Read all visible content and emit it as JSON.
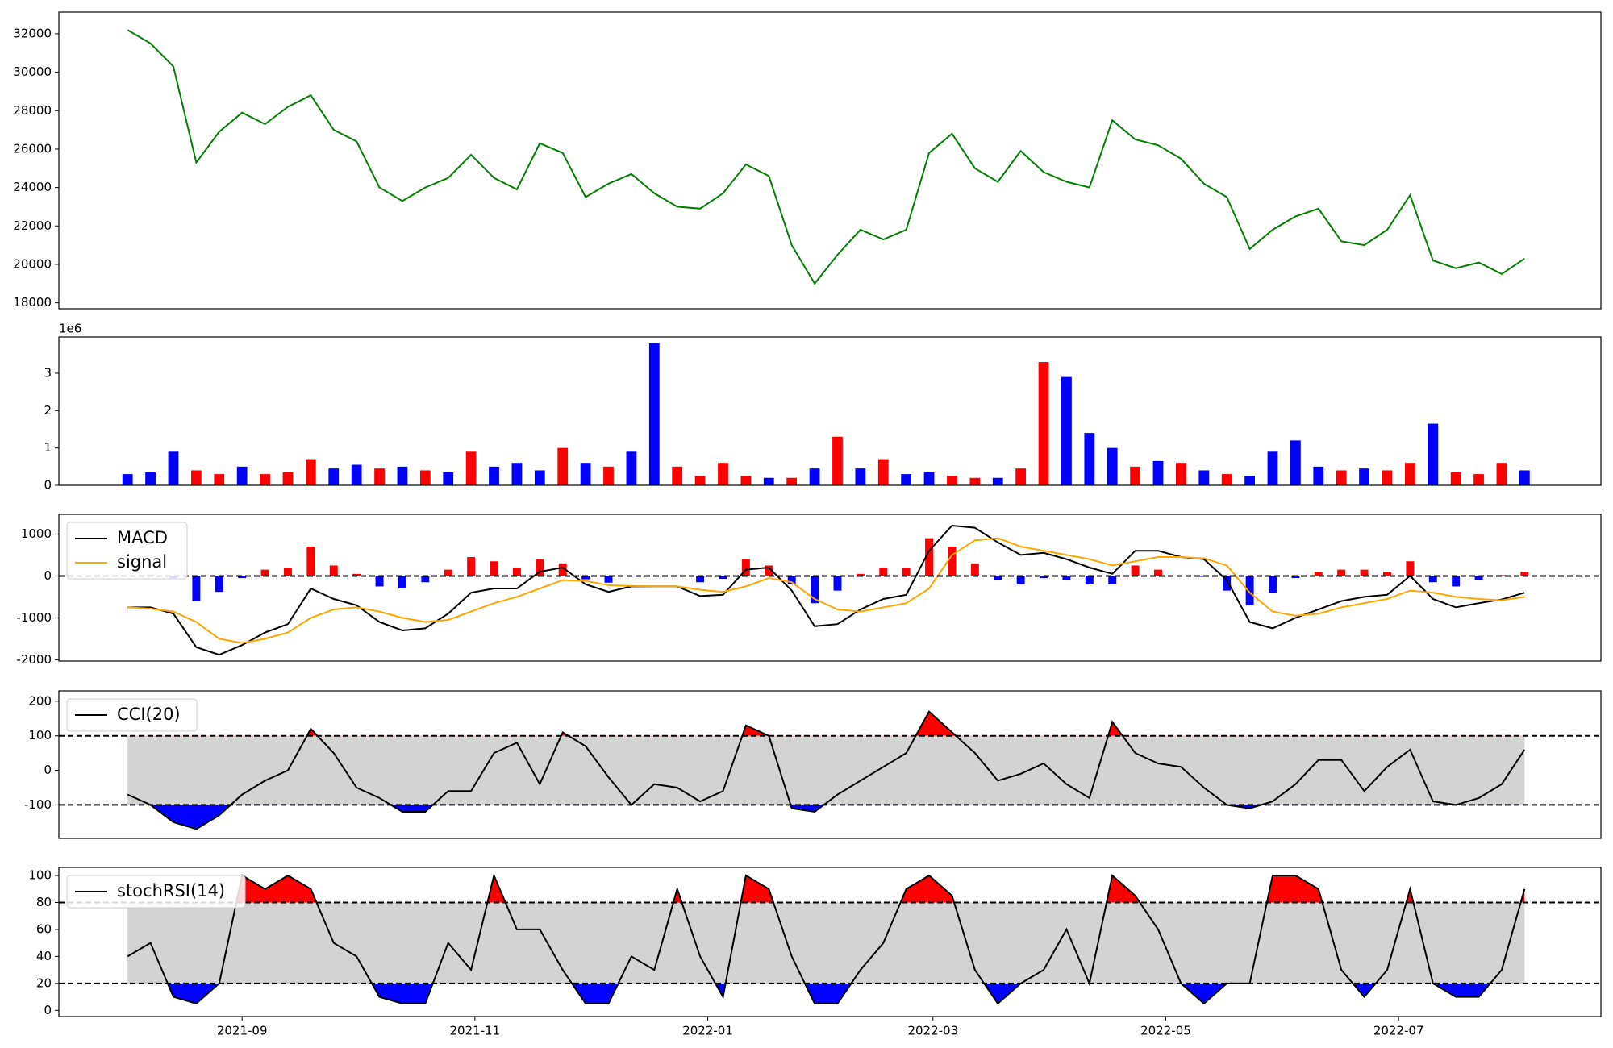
{
  "chart_data": [
    {
      "type": "line",
      "x": [
        18841,
        18847,
        18853,
        18859,
        18865,
        18871,
        18877,
        18883,
        18889,
        18895,
        18901,
        18907,
        18913,
        18919,
        18925,
        18931,
        18937,
        18943,
        18949,
        18955,
        18961,
        18967,
        18973,
        18979,
        18985,
        18991,
        18997,
        19003,
        19009,
        19015,
        19021,
        19027,
        19033,
        19039,
        19045,
        19051,
        19057,
        19063,
        19069,
        19075,
        19081,
        19087,
        19093,
        19099,
        19105,
        19111,
        19117,
        19123,
        19129,
        19135,
        19141,
        19147,
        19153,
        19159,
        19165,
        19171,
        19177,
        19183,
        19189,
        19195,
        19201,
        19207
      ],
      "series": [
        {
          "color": "#008000",
          "values": [
            32200,
            31500,
            30300,
            25300,
            26900,
            27900,
            27300,
            28200,
            28800,
            27000,
            26400,
            24000,
            23300,
            24000,
            24500,
            25700,
            24500,
            23900,
            26300,
            25800,
            23500,
            24200,
            24700,
            23700,
            23000,
            22900,
            23700,
            25200,
            24600,
            21000,
            19000,
            20500,
            21800,
            21300,
            21800,
            25800,
            26800,
            25000,
            24300,
            25900,
            24800,
            24300,
            24000,
            27500,
            26500,
            26200,
            25500,
            24200,
            23500,
            20800,
            21800,
            22500,
            22900,
            21200,
            21000,
            21800,
            23600,
            20200,
            19800,
            20100,
            19500,
            20300
          ]
        }
      ],
      "xlim": [
        18823,
        19227
      ],
      "ylim": [
        17690,
        33130
      ],
      "yticks": [
        18000,
        20000,
        22000,
        24000,
        26000,
        28000,
        30000,
        32000
      ]
    },
    {
      "type": "bar",
      "x": [
        18841,
        18847,
        18853,
        18859,
        18865,
        18871,
        18877,
        18883,
        18889,
        18895,
        18901,
        18907,
        18913,
        18919,
        18925,
        18931,
        18937,
        18943,
        18949,
        18955,
        18961,
        18967,
        18973,
        18979,
        18985,
        18991,
        18997,
        19003,
        19009,
        19015,
        19021,
        19027,
        19033,
        19039,
        19045,
        19051,
        19057,
        19063,
        19069,
        19075,
        19081,
        19087,
        19093,
        19099,
        19105,
        19111,
        19117,
        19123,
        19129,
        19135,
        19141,
        19147,
        19153,
        19159,
        19165,
        19171,
        19177,
        19183,
        19189,
        19195,
        19201,
        19207
      ],
      "values": [
        0.3,
        0.35,
        0.9,
        0.4,
        0.3,
        0.5,
        0.3,
        0.35,
        0.7,
        0.45,
        0.55,
        0.45,
        0.5,
        0.4,
        0.35,
        0.9,
        0.5,
        0.6,
        0.4,
        1.0,
        0.6,
        0.5,
        0.9,
        3.8,
        0.5,
        0.25,
        0.6,
        0.25,
        0.2,
        0.2,
        0.45,
        1.3,
        0.45,
        0.7,
        0.3,
        0.35,
        0.25,
        0.2,
        0.2,
        0.45,
        3.3,
        2.9,
        1.4,
        1.0,
        0.5,
        0.65,
        0.6,
        0.4,
        0.3,
        0.25,
        0.9,
        1.2,
        0.5,
        0.4,
        0.45,
        0.4,
        0.6,
        1.65,
        0.35,
        0.3,
        0.6,
        0.4
      ],
      "colors": [
        "#0000ff",
        "#0000ff",
        "#0000ff",
        "#ff0000",
        "#ff0000",
        "#0000ff",
        "#ff0000",
        "#ff0000",
        "#ff0000",
        "#0000ff",
        "#0000ff",
        "#ff0000",
        "#0000ff",
        "#ff0000",
        "#0000ff",
        "#ff0000",
        "#0000ff",
        "#0000ff",
        "#0000ff",
        "#ff0000",
        "#0000ff",
        "#ff0000",
        "#0000ff",
        "#0000ff",
        "#ff0000",
        "#ff0000",
        "#ff0000",
        "#ff0000",
        "#0000ff",
        "#ff0000",
        "#0000ff",
        "#ff0000",
        "#0000ff",
        "#ff0000",
        "#0000ff",
        "#0000ff",
        "#ff0000",
        "#ff0000",
        "#0000ff",
        "#ff0000",
        "#ff0000",
        "#0000ff",
        "#0000ff",
        "#0000ff",
        "#ff0000",
        "#0000ff",
        "#ff0000",
        "#0000ff",
        "#ff0000",
        "#0000ff",
        "#0000ff",
        "#0000ff",
        "#0000ff",
        "#ff0000",
        "#0000ff",
        "#ff0000",
        "#ff0000",
        "#0000ff",
        "#ff0000",
        "#ff0000",
        "#ff0000",
        "#0000ff"
      ],
      "offset_label": "1e6",
      "xlim": [
        18823,
        19227
      ],
      "ylim": [
        0,
        3.97
      ],
      "yticks": [
        0,
        1,
        2,
        3
      ]
    },
    {
      "type": "line",
      "x": [
        18841,
        18847,
        18853,
        18859,
        18865,
        18871,
        18877,
        18883,
        18889,
        18895,
        18901,
        18907,
        18913,
        18919,
        18925,
        18931,
        18937,
        18943,
        18949,
        18955,
        18961,
        18967,
        18973,
        18979,
        18985,
        18991,
        18997,
        19003,
        19009,
        19015,
        19021,
        19027,
        19033,
        19039,
        19045,
        19051,
        19057,
        19063,
        19069,
        19075,
        19081,
        19087,
        19093,
        19099,
        19105,
        19111,
        19117,
        19123,
        19129,
        19135,
        19141,
        19147,
        19153,
        19159,
        19165,
        19171,
        19177,
        19183,
        19189,
        19195,
        19201,
        19207
      ],
      "series": [
        {
          "name": "MACD",
          "color": "#000000",
          "values": [
            -750,
            -750,
            -900,
            -1700,
            -1880,
            -1650,
            -1350,
            -1150,
            -300,
            -550,
            -700,
            -1100,
            -1300,
            -1250,
            -900,
            -400,
            -300,
            -300,
            100,
            200,
            -200,
            -380,
            -250,
            -250,
            -250,
            -480,
            -450,
            150,
            200,
            -350,
            -1200,
            -1150,
            -800,
            -550,
            -450,
            600,
            1200,
            1150,
            800,
            500,
            550,
            400,
            200,
            50,
            600,
            600,
            450,
            400,
            -100,
            -1100,
            -1250,
            -1000,
            -800,
            -600,
            -500,
            -450,
            0,
            -550,
            -750,
            -650,
            -560,
            -400
          ]
        },
        {
          "name": "signal",
          "color": "#ffa500",
          "values": [
            -750,
            -780,
            -850,
            -1100,
            -1500,
            -1600,
            -1500,
            -1350,
            -1000,
            -800,
            -750,
            -850,
            -1000,
            -1100,
            -1050,
            -850,
            -650,
            -500,
            -300,
            -100,
            -120,
            -220,
            -240,
            -250,
            -250,
            -330,
            -380,
            -250,
            -50,
            -150,
            -550,
            -800,
            -850,
            -750,
            -650,
            -300,
            500,
            850,
            900,
            700,
            600,
            500,
            400,
            250,
            350,
            450,
            450,
            420,
            250,
            -400,
            -850,
            -950,
            -900,
            -750,
            -650,
            -550,
            -350,
            -400,
            -500,
            -550,
            -580,
            -500
          ]
        }
      ],
      "histogram": [
        0,
        30,
        -50,
        -600,
        -380,
        -50,
        150,
        200,
        700,
        250,
        50,
        -250,
        -300,
        -150,
        150,
        450,
        350,
        200,
        400,
        300,
        -80,
        -160,
        -10,
        0,
        0,
        -150,
        -70,
        400,
        250,
        -200,
        -650,
        -350,
        50,
        200,
        200,
        900,
        700,
        300,
        -100,
        -200,
        -50,
        -100,
        -200,
        -200,
        250,
        150,
        0,
        -20,
        -350,
        -700,
        -400,
        -50,
        100,
        150,
        150,
        100,
        350,
        -150,
        -250,
        -100,
        20,
        100
      ],
      "histogram_colors": {
        "positive": "#ff0000",
        "negative": "#0000ff"
      },
      "hlines": [
        0
      ],
      "legend": "upper left",
      "xlim": [
        18823,
        19227
      ],
      "ylim": [
        -2030,
        1470
      ],
      "yticks": [
        -2000,
        -1000,
        0,
        1000
      ]
    },
    {
      "type": "line",
      "x": [
        18841,
        18847,
        18853,
        18859,
        18865,
        18871,
        18877,
        18883,
        18889,
        18895,
        18901,
        18907,
        18913,
        18919,
        18925,
        18931,
        18937,
        18943,
        18949,
        18955,
        18961,
        18967,
        18973,
        18979,
        18985,
        18991,
        18997,
        19003,
        19009,
        19015,
        19021,
        19027,
        19033,
        19039,
        19045,
        19051,
        19057,
        19063,
        19069,
        19075,
        19081,
        19087,
        19093,
        19099,
        19105,
        19111,
        19117,
        19123,
        19129,
        19135,
        19141,
        19147,
        19153,
        19159,
        19165,
        19171,
        19177,
        19183,
        19189,
        19195,
        19201,
        19207
      ],
      "series": [
        {
          "name": "CCI(20)",
          "color": "#000000",
          "values": [
            -70,
            -100,
            -150,
            -170,
            -130,
            -70,
            -30,
            0,
            120,
            50,
            -50,
            -80,
            -120,
            -120,
            -60,
            -60,
            50,
            80,
            -40,
            110,
            70,
            -20,
            -100,
            -40,
            -50,
            -90,
            -60,
            130,
            100,
            -110,
            -120,
            -70,
            -30,
            10,
            50,
            170,
            110,
            50,
            -30,
            -10,
            20,
            -40,
            -80,
            140,
            50,
            20,
            10,
            -50,
            -100,
            -110,
            -90,
            -40,
            30,
            30,
            -60,
            10,
            60,
            -90,
            -100,
            -80,
            -40,
            60
          ]
        }
      ],
      "hlines": [
        100,
        -100
      ],
      "band_color": "#d3d3d3",
      "over_color": "#ff0000",
      "under_color": "#0000ff",
      "legend": "upper left",
      "xlim": [
        18823,
        19227
      ],
      "ylim": [
        -197,
        230
      ],
      "yticks": [
        -100,
        0,
        100,
        200
      ]
    },
    {
      "type": "line",
      "x": [
        18841,
        18847,
        18853,
        18859,
        18865,
        18871,
        18877,
        18883,
        18889,
        18895,
        18901,
        18907,
        18913,
        18919,
        18925,
        18931,
        18937,
        18943,
        18949,
        18955,
        18961,
        18967,
        18973,
        18979,
        18985,
        18991,
        18997,
        19003,
        19009,
        19015,
        19021,
        19027,
        19033,
        19039,
        19045,
        19051,
        19057,
        19063,
        19069,
        19075,
        19081,
        19087,
        19093,
        19099,
        19105,
        19111,
        19117,
        19123,
        19129,
        19135,
        19141,
        19147,
        19153,
        19159,
        19165,
        19171,
        19177,
        19183,
        19189,
        19195,
        19201,
        19207
      ],
      "series": [
        {
          "name": "stochRSI(14)",
          "color": "#000000",
          "values": [
            40,
            50,
            10,
            5,
            20,
            100,
            90,
            100,
            90,
            50,
            40,
            10,
            5,
            5,
            50,
            30,
            100,
            60,
            60,
            30,
            5,
            5,
            40,
            30,
            90,
            40,
            10,
            100,
            90,
            40,
            5,
            5,
            30,
            50,
            90,
            100,
            85,
            30,
            5,
            20,
            30,
            60,
            20,
            100,
            85,
            60,
            20,
            5,
            20,
            20,
            100,
            100,
            90,
            30,
            10,
            30,
            90,
            20,
            10,
            10,
            30,
            90
          ]
        }
      ],
      "hlines": [
        80,
        20
      ],
      "band_color": "#d3d3d3",
      "over_color": "#ff0000",
      "under_color": "#0000ff",
      "legend": "upper left",
      "xlim": [
        18823,
        19227
      ],
      "ylim": [
        -4.6,
        106
      ],
      "yticks": [
        0,
        20,
        40,
        60,
        80,
        100
      ],
      "xticks": [
        {
          "value": 18871,
          "label": "2021-09"
        },
        {
          "value": 18932,
          "label": "2021-11"
        },
        {
          "value": 18993,
          "label": "2022-01"
        },
        {
          "value": 19052,
          "label": "2022-03"
        },
        {
          "value": 19113,
          "label": "2022-05"
        },
        {
          "value": 19174,
          "label": "2022-07"
        }
      ]
    }
  ]
}
